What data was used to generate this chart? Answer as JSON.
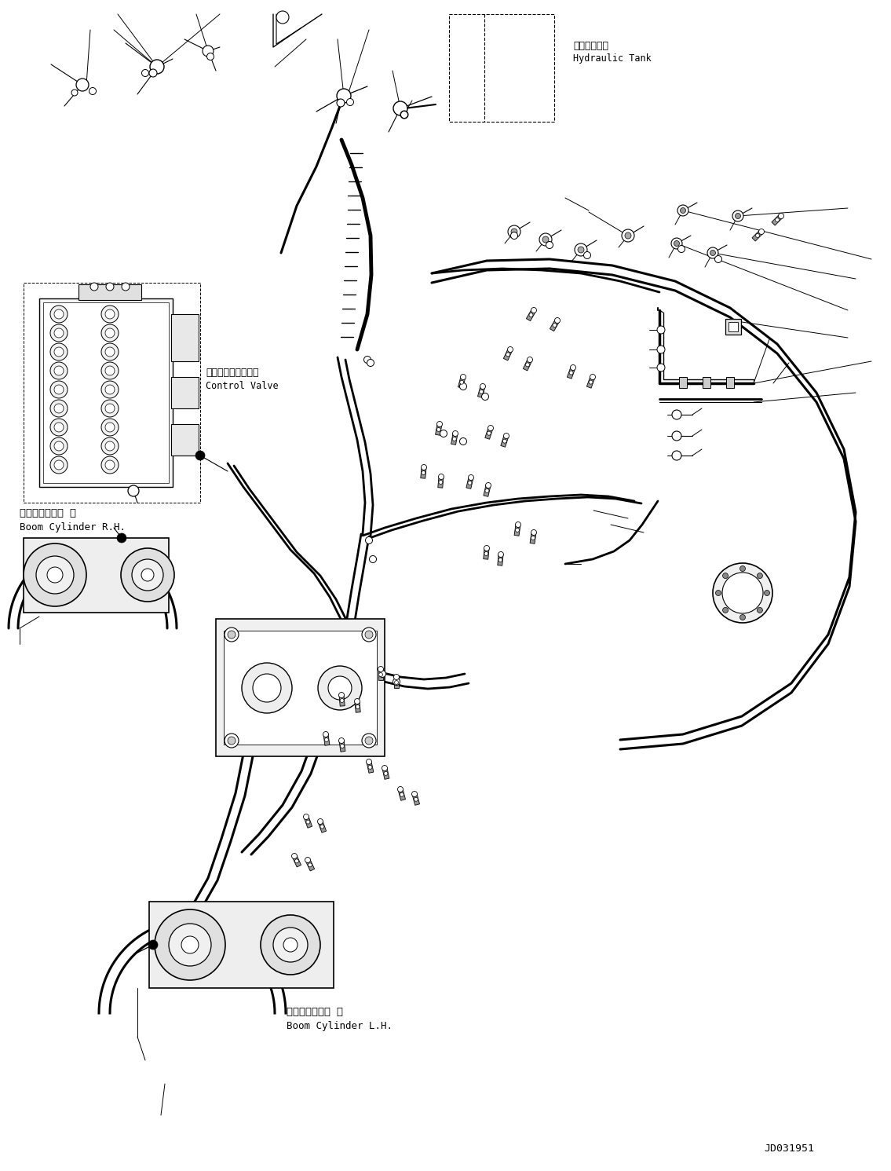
{
  "bg_color": "#ffffff",
  "fig_width": 11.35,
  "fig_height": 14.91,
  "dpi": 100,
  "part_number": "JD031951",
  "labels": {
    "hydraulic_tank_jp": "作動油タンク",
    "hydraulic_tank_en": "Hydraulic Tank",
    "control_valve_jp": "コントロールバルブ",
    "control_valve_en": "Control Valve",
    "boom_cyl_rh_jp": "ブームシリンダ 右",
    "boom_cyl_rh_en": "Boom Cylinder R.H.",
    "boom_cyl_lh_jp": "ブームシリンダ 左",
    "boom_cyl_lh_en": "Boom Cylinder L.H."
  },
  "colors": {
    "line": "#000000",
    "gray_light": "#e8e8e8",
    "gray_mid": "#cccccc",
    "gray_dark": "#888888",
    "white": "#ffffff"
  }
}
